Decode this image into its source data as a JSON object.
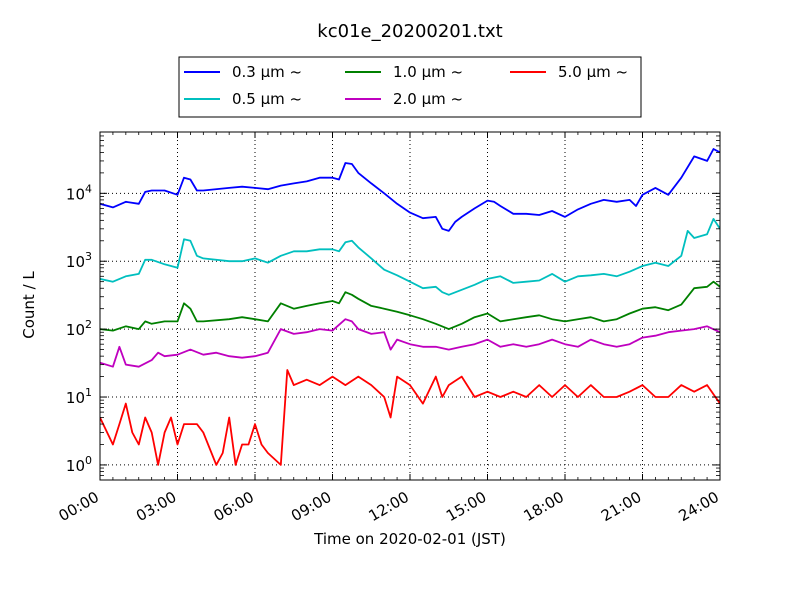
{
  "chart_data": {
    "type": "line",
    "title": "kc01e_20200201.txt",
    "xlabel": "Time on 2020-02-01 (JST)",
    "ylabel": "Count / L",
    "y_scale": "log",
    "ylim": [
      0.6,
      80000
    ],
    "xlim": [
      0,
      24
    ],
    "x_ticks": [
      "00:00",
      "03:00",
      "06:00",
      "09:00",
      "12:00",
      "15:00",
      "18:00",
      "21:00",
      "24:00"
    ],
    "y_ticks": [
      "10^0",
      "10^1",
      "10^2",
      "10^3",
      "10^4"
    ],
    "grid": true,
    "legend_position": "top",
    "x_unit": "hours",
    "series": [
      {
        "name": "0.3 µm  ~",
        "color": "#0000ff",
        "points": [
          [
            0,
            7000
          ],
          [
            0.5,
            6200
          ],
          [
            1,
            7500
          ],
          [
            1.5,
            7000
          ],
          [
            1.75,
            10500
          ],
          [
            2,
            11000
          ],
          [
            2.5,
            11000
          ],
          [
            3,
            9500
          ],
          [
            3.25,
            17000
          ],
          [
            3.5,
            16000
          ],
          [
            3.75,
            11000
          ],
          [
            4,
            11000
          ],
          [
            5,
            12000
          ],
          [
            5.5,
            12500
          ],
          [
            6,
            12000
          ],
          [
            6.5,
            11500
          ],
          [
            7,
            13000
          ],
          [
            7.5,
            14000
          ],
          [
            8,
            15000
          ],
          [
            8.5,
            17000
          ],
          [
            9,
            17000
          ],
          [
            9.25,
            16000
          ],
          [
            9.5,
            28000
          ],
          [
            9.75,
            27000
          ],
          [
            10,
            20000
          ],
          [
            10.5,
            14000
          ],
          [
            11,
            10000
          ],
          [
            11.5,
            7000
          ],
          [
            12,
            5200
          ],
          [
            12.5,
            4300
          ],
          [
            13,
            4500
          ],
          [
            13.25,
            3000
          ],
          [
            13.5,
            2800
          ],
          [
            13.75,
            3800
          ],
          [
            14,
            4500
          ],
          [
            14.5,
            6000
          ],
          [
            15,
            7800
          ],
          [
            15.25,
            7500
          ],
          [
            15.5,
            6500
          ],
          [
            16,
            5000
          ],
          [
            16.5,
            5000
          ],
          [
            17,
            4800
          ],
          [
            17.5,
            5500
          ],
          [
            18,
            4500
          ],
          [
            18.5,
            5800
          ],
          [
            19,
            7000
          ],
          [
            19.5,
            8000
          ],
          [
            20,
            7500
          ],
          [
            20.5,
            8000
          ],
          [
            20.75,
            6500
          ],
          [
            21,
            9500
          ],
          [
            21.5,
            12000
          ],
          [
            22,
            9500
          ],
          [
            22.5,
            17000
          ],
          [
            23,
            35000
          ],
          [
            23.5,
            30000
          ],
          [
            23.75,
            45000
          ],
          [
            24,
            40000
          ]
        ]
      },
      {
        "name": "0.5 µm  ~",
        "color": "#00bfbf",
        "points": [
          [
            0,
            550
          ],
          [
            0.5,
            500
          ],
          [
            1,
            600
          ],
          [
            1.5,
            650
          ],
          [
            1.75,
            1050
          ],
          [
            2,
            1050
          ],
          [
            2.5,
            900
          ],
          [
            3,
            800
          ],
          [
            3.25,
            2100
          ],
          [
            3.5,
            2000
          ],
          [
            3.75,
            1200
          ],
          [
            4,
            1100
          ],
          [
            5,
            1000
          ],
          [
            5.5,
            1000
          ],
          [
            6,
            1100
          ],
          [
            6.5,
            950
          ],
          [
            7,
            1200
          ],
          [
            7.5,
            1400
          ],
          [
            8,
            1400
          ],
          [
            8.5,
            1500
          ],
          [
            9,
            1500
          ],
          [
            9.25,
            1400
          ],
          [
            9.5,
            1900
          ],
          [
            9.75,
            2000
          ],
          [
            10,
            1600
          ],
          [
            10.5,
            1100
          ],
          [
            11,
            750
          ],
          [
            11.5,
            620
          ],
          [
            12,
            500
          ],
          [
            12.5,
            400
          ],
          [
            13,
            420
          ],
          [
            13.25,
            350
          ],
          [
            13.5,
            320
          ],
          [
            14,
            380
          ],
          [
            14.5,
            450
          ],
          [
            15,
            550
          ],
          [
            15.5,
            600
          ],
          [
            16,
            480
          ],
          [
            16.5,
            500
          ],
          [
            17,
            520
          ],
          [
            17.5,
            650
          ],
          [
            18,
            500
          ],
          [
            18.5,
            600
          ],
          [
            19,
            620
          ],
          [
            19.5,
            650
          ],
          [
            20,
            600
          ],
          [
            20.5,
            700
          ],
          [
            21,
            850
          ],
          [
            21.5,
            950
          ],
          [
            22,
            850
          ],
          [
            22.5,
            1200
          ],
          [
            22.75,
            2800
          ],
          [
            23,
            2200
          ],
          [
            23.5,
            2500
          ],
          [
            23.75,
            4200
          ],
          [
            24,
            3000
          ]
        ]
      },
      {
        "name": "1.0 µm  ~",
        "color": "#008000",
        "points": [
          [
            0,
            100
          ],
          [
            0.5,
            95
          ],
          [
            1,
            110
          ],
          [
            1.5,
            100
          ],
          [
            1.75,
            130
          ],
          [
            2,
            120
          ],
          [
            2.5,
            130
          ],
          [
            3,
            130
          ],
          [
            3.25,
            240
          ],
          [
            3.5,
            200
          ],
          [
            3.75,
            130
          ],
          [
            4,
            130
          ],
          [
            5,
            140
          ],
          [
            5.5,
            150
          ],
          [
            6,
            140
          ],
          [
            6.5,
            130
          ],
          [
            7,
            240
          ],
          [
            7.5,
            200
          ],
          [
            8,
            220
          ],
          [
            8.5,
            240
          ],
          [
            9,
            260
          ],
          [
            9.25,
            240
          ],
          [
            9.5,
            350
          ],
          [
            9.75,
            320
          ],
          [
            10,
            280
          ],
          [
            10.5,
            220
          ],
          [
            11,
            200
          ],
          [
            11.5,
            180
          ],
          [
            12,
            160
          ],
          [
            12.5,
            140
          ],
          [
            13,
            120
          ],
          [
            13.5,
            100
          ],
          [
            14,
            120
          ],
          [
            14.5,
            150
          ],
          [
            15,
            170
          ],
          [
            15.5,
            130
          ],
          [
            16,
            140
          ],
          [
            16.5,
            150
          ],
          [
            17,
            160
          ],
          [
            17.5,
            140
          ],
          [
            18,
            130
          ],
          [
            18.5,
            140
          ],
          [
            19,
            150
          ],
          [
            19.5,
            130
          ],
          [
            20,
            140
          ],
          [
            20.5,
            170
          ],
          [
            21,
            200
          ],
          [
            21.5,
            210
          ],
          [
            22,
            190
          ],
          [
            22.5,
            230
          ],
          [
            23,
            400
          ],
          [
            23.5,
            420
          ],
          [
            23.75,
            500
          ],
          [
            24,
            420
          ]
        ]
      },
      {
        "name": "2.0 µm  ~",
        "color": "#bf00bf",
        "points": [
          [
            0,
            32
          ],
          [
            0.5,
            28
          ],
          [
            0.75,
            55
          ],
          [
            1,
            30
          ],
          [
            1.5,
            28
          ],
          [
            2,
            35
          ],
          [
            2.25,
            45
          ],
          [
            2.5,
            40
          ],
          [
            3,
            42
          ],
          [
            3.5,
            50
          ],
          [
            4,
            42
          ],
          [
            4.5,
            45
          ],
          [
            5,
            40
          ],
          [
            5.5,
            38
          ],
          [
            6,
            40
          ],
          [
            6.5,
            45
          ],
          [
            7,
            100
          ],
          [
            7.5,
            85
          ],
          [
            8,
            90
          ],
          [
            8.5,
            100
          ],
          [
            9,
            95
          ],
          [
            9.5,
            140
          ],
          [
            9.75,
            130
          ],
          [
            10,
            100
          ],
          [
            10.5,
            85
          ],
          [
            11,
            90
          ],
          [
            11.25,
            50
          ],
          [
            11.5,
            70
          ],
          [
            12,
            60
          ],
          [
            12.5,
            55
          ],
          [
            13,
            55
          ],
          [
            13.5,
            50
          ],
          [
            14,
            55
          ],
          [
            14.5,
            60
          ],
          [
            15,
            70
          ],
          [
            15.5,
            55
          ],
          [
            16,
            60
          ],
          [
            16.5,
            55
          ],
          [
            17,
            60
          ],
          [
            17.5,
            70
          ],
          [
            18,
            60
          ],
          [
            18.5,
            55
          ],
          [
            19,
            70
          ],
          [
            19.5,
            60
          ],
          [
            20,
            55
          ],
          [
            20.5,
            60
          ],
          [
            21,
            75
          ],
          [
            21.5,
            80
          ],
          [
            22,
            90
          ],
          [
            22.5,
            95
          ],
          [
            23,
            100
          ],
          [
            23.5,
            110
          ],
          [
            24,
            90
          ]
        ]
      },
      {
        "name": "5.0 µm  ~",
        "color": "#ff0000",
        "points": [
          [
            0,
            5
          ],
          [
            0.5,
            2
          ],
          [
            0.75,
            4
          ],
          [
            1,
            8
          ],
          [
            1.25,
            3
          ],
          [
            1.5,
            2
          ],
          [
            1.75,
            5
          ],
          [
            2,
            3
          ],
          [
            2.25,
            1
          ],
          [
            2.5,
            3
          ],
          [
            2.75,
            5
          ],
          [
            3,
            2
          ],
          [
            3.25,
            4
          ],
          [
            3.5,
            4
          ],
          [
            3.75,
            4
          ],
          [
            4,
            3
          ],
          [
            4.5,
            1
          ],
          [
            4.75,
            1.5
          ],
          [
            5,
            5
          ],
          [
            5.25,
            1
          ],
          [
            5.5,
            2
          ],
          [
            5.75,
            2
          ],
          [
            6,
            4
          ],
          [
            6.25,
            2
          ],
          [
            6.5,
            1.5
          ],
          [
            7,
            1
          ],
          [
            7.25,
            25
          ],
          [
            7.5,
            15
          ],
          [
            8,
            18
          ],
          [
            8.5,
            15
          ],
          [
            9,
            20
          ],
          [
            9.5,
            15
          ],
          [
            10,
            20
          ],
          [
            10.5,
            15
          ],
          [
            11,
            10
          ],
          [
            11.25,
            5
          ],
          [
            11.5,
            20
          ],
          [
            12,
            15
          ],
          [
            12.5,
            8
          ],
          [
            13,
            20
          ],
          [
            13.25,
            10
          ],
          [
            13.5,
            15
          ],
          [
            14,
            20
          ],
          [
            14.5,
            10
          ],
          [
            15,
            12
          ],
          [
            15.5,
            10
          ],
          [
            16,
            12
          ],
          [
            16.5,
            10
          ],
          [
            17,
            15
          ],
          [
            17.5,
            10
          ],
          [
            18,
            15
          ],
          [
            18.5,
            10
          ],
          [
            19,
            15
          ],
          [
            19.5,
            10
          ],
          [
            20,
            10
          ],
          [
            20.5,
            12
          ],
          [
            21,
            15
          ],
          [
            21.5,
            10
          ],
          [
            22,
            10
          ],
          [
            22.5,
            15
          ],
          [
            23,
            12
          ],
          [
            23.5,
            15
          ],
          [
            24,
            8
          ]
        ]
      }
    ]
  }
}
